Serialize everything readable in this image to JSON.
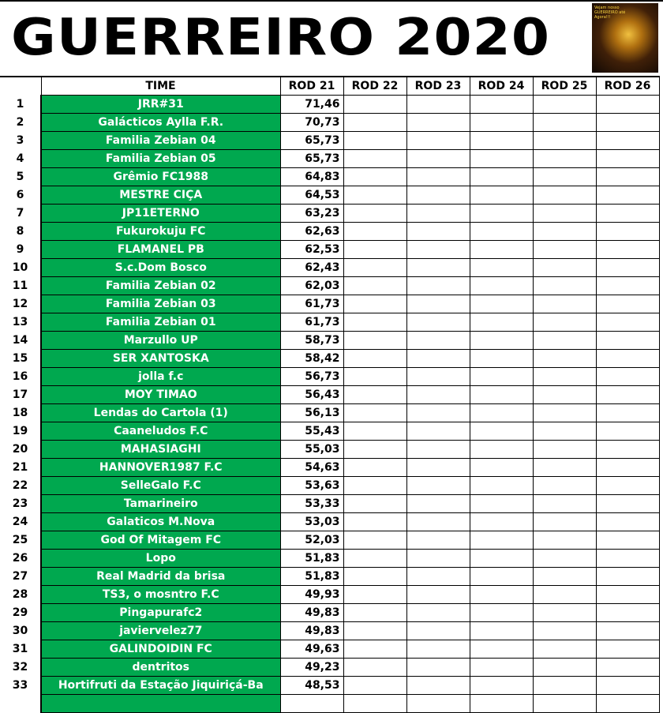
{
  "title": "GUERREIRO 2020",
  "logo_text": "Vejam nosso GUERREIRO até Agora!!!",
  "colors": {
    "team_cell": "#00a84f",
    "team_text": "#ffffff"
  },
  "columns": [
    "TIME",
    "ROD 21",
    "ROD 22",
    "ROD 23",
    "ROD 24",
    "ROD 25",
    "ROD 26"
  ],
  "rows": [
    {
      "pos": "1",
      "team": "JRR#31",
      "rod21": "71,46"
    },
    {
      "pos": "2",
      "team": "Galácticos Aylla F.R.",
      "rod21": "70,73"
    },
    {
      "pos": "3",
      "team": "Familia Zebian 04",
      "rod21": "65,73"
    },
    {
      "pos": "4",
      "team": "Familia Zebian 05",
      "rod21": "65,73"
    },
    {
      "pos": "5",
      "team": "Grêmio FC1988",
      "rod21": "64,83"
    },
    {
      "pos": "6",
      "team": "MESTRE CIÇA",
      "rod21": "64,53"
    },
    {
      "pos": "7",
      "team": "JP11ETERNO",
      "rod21": "63,23"
    },
    {
      "pos": "8",
      "team": "Fukurokuju FC",
      "rod21": "62,63"
    },
    {
      "pos": "9",
      "team": "FLAMANEL PB",
      "rod21": "62,53"
    },
    {
      "pos": "10",
      "team": "S.c.Dom Bosco",
      "rod21": "62,43"
    },
    {
      "pos": "11",
      "team": "Familia Zebian 02",
      "rod21": "62,03"
    },
    {
      "pos": "12",
      "team": "Familia Zebian 03",
      "rod21": "61,73"
    },
    {
      "pos": "13",
      "team": "Familia Zebian 01",
      "rod21": "61,73"
    },
    {
      "pos": "14",
      "team": "Marzullo UP",
      "rod21": "58,73"
    },
    {
      "pos": "15",
      "team": "SER XANTOSKA",
      "rod21": "58,42"
    },
    {
      "pos": "16",
      "team": "jolla f.c",
      "rod21": "56,73"
    },
    {
      "pos": "17",
      "team": "MOY TIMAO",
      "rod21": "56,43"
    },
    {
      "pos": "18",
      "team": "Lendas do Cartola (1)",
      "rod21": "56,13"
    },
    {
      "pos": "19",
      "team": "Caaneludos F.C",
      "rod21": "55,43"
    },
    {
      "pos": "20",
      "team": "MAHASIAGHI",
      "rod21": "55,03"
    },
    {
      "pos": "21",
      "team": "HANNOVER1987 F.C",
      "rod21": "54,63"
    },
    {
      "pos": "22",
      "team": "SelleGalo F.C",
      "rod21": "53,63"
    },
    {
      "pos": "23",
      "team": "Tamarineiro",
      "rod21": "53,33"
    },
    {
      "pos": "24",
      "team": "Galaticos M.Nova",
      "rod21": "53,03"
    },
    {
      "pos": "25",
      "team": "God Of Mitagem FC",
      "rod21": "52,03"
    },
    {
      "pos": "26",
      "team": "Lopo",
      "rod21": "51,83"
    },
    {
      "pos": "27",
      "team": "Real Madrid da brisa",
      "rod21": "51,83"
    },
    {
      "pos": "28",
      "team": "TS3, o mosntro F.C",
      "rod21": "49,93"
    },
    {
      "pos": "29",
      "team": "Pingapurafc2",
      "rod21": "49,83"
    },
    {
      "pos": "30",
      "team": "javiervelez77",
      "rod21": "49,83"
    },
    {
      "pos": "31",
      "team": "GALINDOIDIN FC",
      "rod21": "49,63"
    },
    {
      "pos": "32",
      "team": "dentritos",
      "rod21": "49,23"
    },
    {
      "pos": "33",
      "team": "Hortifruti da Estação Jiquiriçá-Ba",
      "rod21": "48,53"
    },
    {
      "pos": "",
      "team": "",
      "rod21": ""
    }
  ]
}
